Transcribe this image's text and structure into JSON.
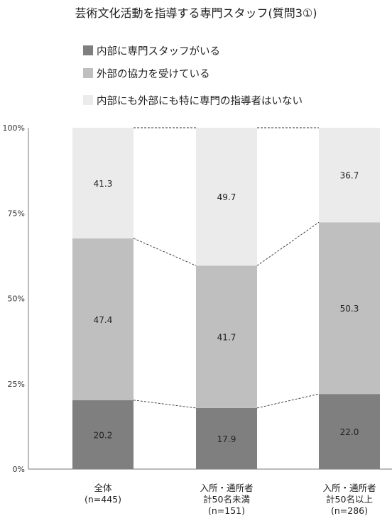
{
  "chart_data": {
    "type": "bar",
    "stacked": true,
    "title": "芸術文化活動を指導する専門スタッフ(質問3①)",
    "categories": [
      [
        "全体",
        "(n=445)"
      ],
      [
        "入所・通所者",
        "計50名未満",
        "(n=151)"
      ],
      [
        "入所・通所者",
        "計50名以上",
        "(n=286)"
      ]
    ],
    "series": [
      {
        "name": "内部に専門スタッフがいる",
        "values": [
          20.2,
          17.9,
          22.0
        ],
        "labels": [
          "20.2",
          "17.9",
          "22.0"
        ],
        "color": "#7f7f7f"
      },
      {
        "name": "外部の協力を受けている",
        "values": [
          47.4,
          41.7,
          50.3
        ],
        "labels": [
          "47.4",
          "41.7",
          "50.3"
        ],
        "color": "#bfbfbf"
      },
      {
        "name": "内部にも外部にも特に専門の指導者はいない",
        "values": [
          41.3,
          49.7,
          36.7
        ],
        "labels": [
          "41.3",
          "49.7",
          "36.7"
        ],
        "color": "#ebebeb"
      }
    ],
    "y_ticks": [
      "0%",
      "25%",
      "50%",
      "75%",
      "100%"
    ],
    "ylim": [
      0,
      100
    ],
    "legend_position": "top-left",
    "series_connector_lines": true
  }
}
